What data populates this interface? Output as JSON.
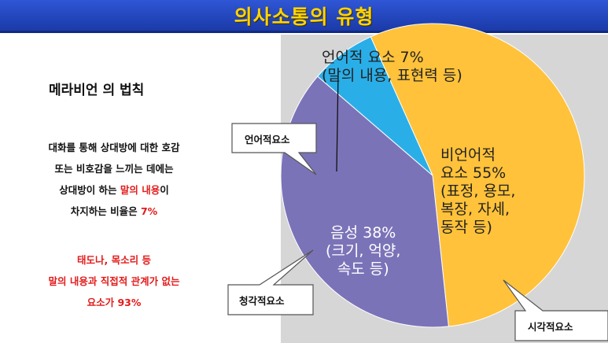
{
  "title": "의사소통의 유형",
  "left": {
    "heading": "메라비언 의 법칙",
    "para1": {
      "line1": "대화를 통해 상대방에 대한 호감",
      "line2": "또는 비호감을 느끼는 데에는",
      "line3_a": "상대방이 하는 ",
      "line3_b": "말의 내용",
      "line3_c": "이",
      "line4_a": "차지하는 비율은 ",
      "line4_b": "7%"
    },
    "para2": {
      "line1": "태도나, 목소리 등",
      "line2": "말의 내용과 직접적 관계가 없는",
      "line3": "요소가 93%"
    }
  },
  "callouts": {
    "verbal": "언어적요소",
    "auditory": "청각적요소",
    "visual": "시각적요소"
  },
  "chart_data": {
    "type": "pie",
    "slices": [
      {
        "name": "비언어적 요소",
        "value": 55,
        "color": "#ffc23a"
      },
      {
        "name": "음성",
        "value": 38,
        "color": "#7b73b8"
      },
      {
        "name": "언어적 요소",
        "value": 7,
        "color": "#2aaee8"
      }
    ],
    "labels": {
      "verbal_1": "언어적 요소 7%",
      "verbal_2": "(말의 내용, 표현력 등)",
      "nonverbal_1": "비언어적",
      "nonverbal_2": "요소 55%",
      "nonverbal_3": "(표정, 용모,",
      "nonverbal_4": "복장, 자세,",
      "nonverbal_5": "동작 등)",
      "voice_1": "음성 38%",
      "voice_2": "(크기, 억양,",
      "voice_3": "속도 등)"
    }
  },
  "colors": {
    "title_bg": "#2447c6",
    "title_text": "#ffd400",
    "highlight": "#e31b1b",
    "panel": "#d6d6d6"
  }
}
